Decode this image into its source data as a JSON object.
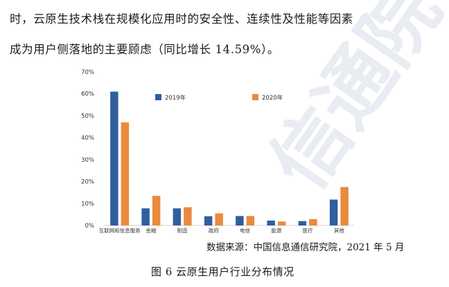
{
  "document": {
    "line1": "时，云原生技术栈在规模化应用时的安全性、连续性及性能等因素",
    "line2": "成为用户侧落地的主要顾虑（同比增长 14.59%）。",
    "source": "数据来源：中国信息通信研究院，2021 年 5 月",
    "caption": "图 6  云原生用户行业分布情况",
    "watermark": "信通院"
  },
  "chart_data": {
    "type": "bar",
    "categories": [
      "互联网和信息服务",
      "金融",
      "制造",
      "政府",
      "电信",
      "能源",
      "医疗",
      "其他"
    ],
    "series": [
      {
        "name": "2019年",
        "color": "#2f5f9e",
        "values": [
          61,
          7.8,
          7.8,
          4.2,
          4.3,
          2.2,
          2.0,
          11.8
        ]
      },
      {
        "name": "2020年",
        "color": "#e98a3f",
        "values": [
          47,
          13.5,
          8.3,
          5.5,
          4.3,
          1.8,
          2.9,
          17.5
        ]
      }
    ],
    "ylim": [
      0,
      70
    ],
    "yticks": [
      "0%",
      "10%",
      "20%",
      "30%",
      "40%",
      "50%",
      "60%",
      "70%"
    ],
    "legend_position": "top-right"
  }
}
